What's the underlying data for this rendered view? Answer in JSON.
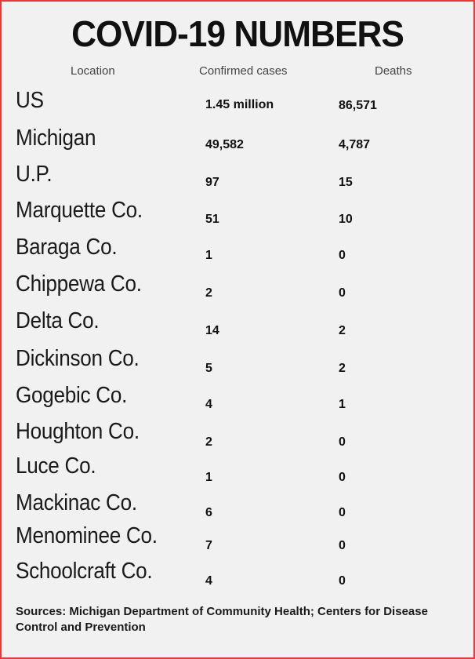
{
  "title": "COVID-19 NUMBERS",
  "columns": {
    "location": "Location",
    "cases": "Confirmed cases",
    "deaths": "Deaths"
  },
  "rows": [
    {
      "location": "US",
      "cases": "1.45 million",
      "deaths": "86,571"
    },
    {
      "location": "Michigan",
      "cases": "49,582",
      "deaths": "4,787"
    },
    {
      "location": "U.P.",
      "cases": "97",
      "deaths": "15"
    },
    {
      "location": "Marquette Co.",
      "cases": "51",
      "deaths": "10"
    },
    {
      "location": "Baraga Co.",
      "cases": "1",
      "deaths": "0"
    },
    {
      "location": "Chippewa Co.",
      "cases": "2",
      "deaths": "0"
    },
    {
      "location": "Delta Co.",
      "cases": "14",
      "deaths": "2"
    },
    {
      "location": "Dickinson Co.",
      "cases": "5",
      "deaths": "2"
    },
    {
      "location": "Gogebic Co.",
      "cases": "4",
      "deaths": "1"
    },
    {
      "location": "Houghton Co.",
      "cases": "2",
      "deaths": "0"
    },
    {
      "location": "Luce Co.",
      "cases": "1",
      "deaths": "0"
    },
    {
      "location": "Mackinac Co.",
      "cases": "6",
      "deaths": "0"
    },
    {
      "location": "Menominee Co.",
      "cases": "7",
      "deaths": "0"
    },
    {
      "location": "Schoolcraft Co.",
      "cases": "4",
      "deaths": "0"
    }
  ],
  "sources": "Sources: Michigan Department of Community Health; Centers for Disease Control and Prevention",
  "colors": {
    "border": "#e43a3a",
    "background": "#f1f1f1",
    "text": "#111111"
  }
}
